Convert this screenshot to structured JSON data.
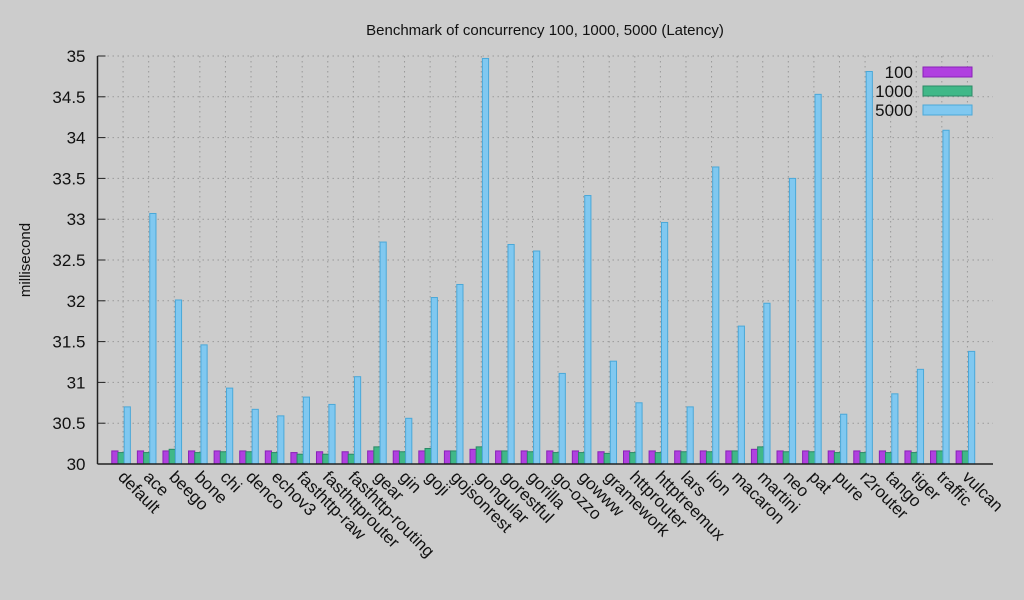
{
  "chart_data": {
    "type": "bar",
    "title": "Benchmark of concurrency 100, 1000, 5000 (Latency)",
    "xlabel": "",
    "ylabel": "millisecond",
    "ylim": [
      30,
      35
    ],
    "yticks": [
      "30",
      "30.5",
      "31",
      "31.5",
      "32",
      "32.5",
      "33",
      "33.5",
      "34",
      "34.5",
      "35"
    ],
    "grid": true,
    "legend_position": "top-right",
    "categories": [
      "default",
      "ace",
      "beego",
      "bone",
      "chi",
      "denco",
      "echov3",
      "fasthttp-raw",
      "fasthttprouter",
      "fasthttp-routing",
      "gear",
      "gin",
      "goji",
      "gojsonrest",
      "gongular",
      "gorestful",
      "gorilla",
      "go-ozzo",
      "gowww",
      "gramework",
      "httprouter",
      "httptreemux",
      "lars",
      "lion",
      "macaron",
      "martini",
      "neo",
      "pat",
      "pure",
      "r2router",
      "tango",
      "tiger",
      "traffic",
      "vulcan"
    ],
    "series": [
      {
        "name": "100",
        "color": "#b040e0",
        "values": [
          30.16,
          30.16,
          30.16,
          30.16,
          30.16,
          30.16,
          30.16,
          30.14,
          30.15,
          30.15,
          30.16,
          30.16,
          30.16,
          30.16,
          30.18,
          30.16,
          30.16,
          30.16,
          30.16,
          30.15,
          30.16,
          30.16,
          30.16,
          30.16,
          30.16,
          30.18,
          30.16,
          30.16,
          30.16,
          30.16,
          30.16,
          30.16,
          30.16,
          30.16
        ]
      },
      {
        "name": "1000",
        "color": "#40b888",
        "values": [
          30.14,
          30.14,
          30.18,
          30.14,
          30.15,
          30.15,
          30.14,
          30.12,
          30.12,
          30.12,
          30.21,
          30.15,
          30.19,
          30.16,
          30.21,
          30.16,
          30.15,
          30.14,
          30.14,
          30.13,
          30.14,
          30.14,
          30.15,
          30.15,
          30.16,
          30.21,
          30.15,
          30.15,
          30.14,
          30.14,
          30.14,
          30.14,
          30.16,
          30.16
        ]
      },
      {
        "name": "5000",
        "color": "#80c8f0",
        "values": [
          30.7,
          33.07,
          32.01,
          31.46,
          30.93,
          30.67,
          30.59,
          30.82,
          30.73,
          31.07,
          32.72,
          30.56,
          32.04,
          32.2,
          34.97,
          32.69,
          32.61,
          31.11,
          33.29,
          31.26,
          30.75,
          32.96,
          30.7,
          33.64,
          31.69,
          31.97,
          33.5,
          34.53,
          30.61,
          34.81,
          30.86,
          31.16,
          34.09,
          31.38
        ]
      }
    ]
  }
}
